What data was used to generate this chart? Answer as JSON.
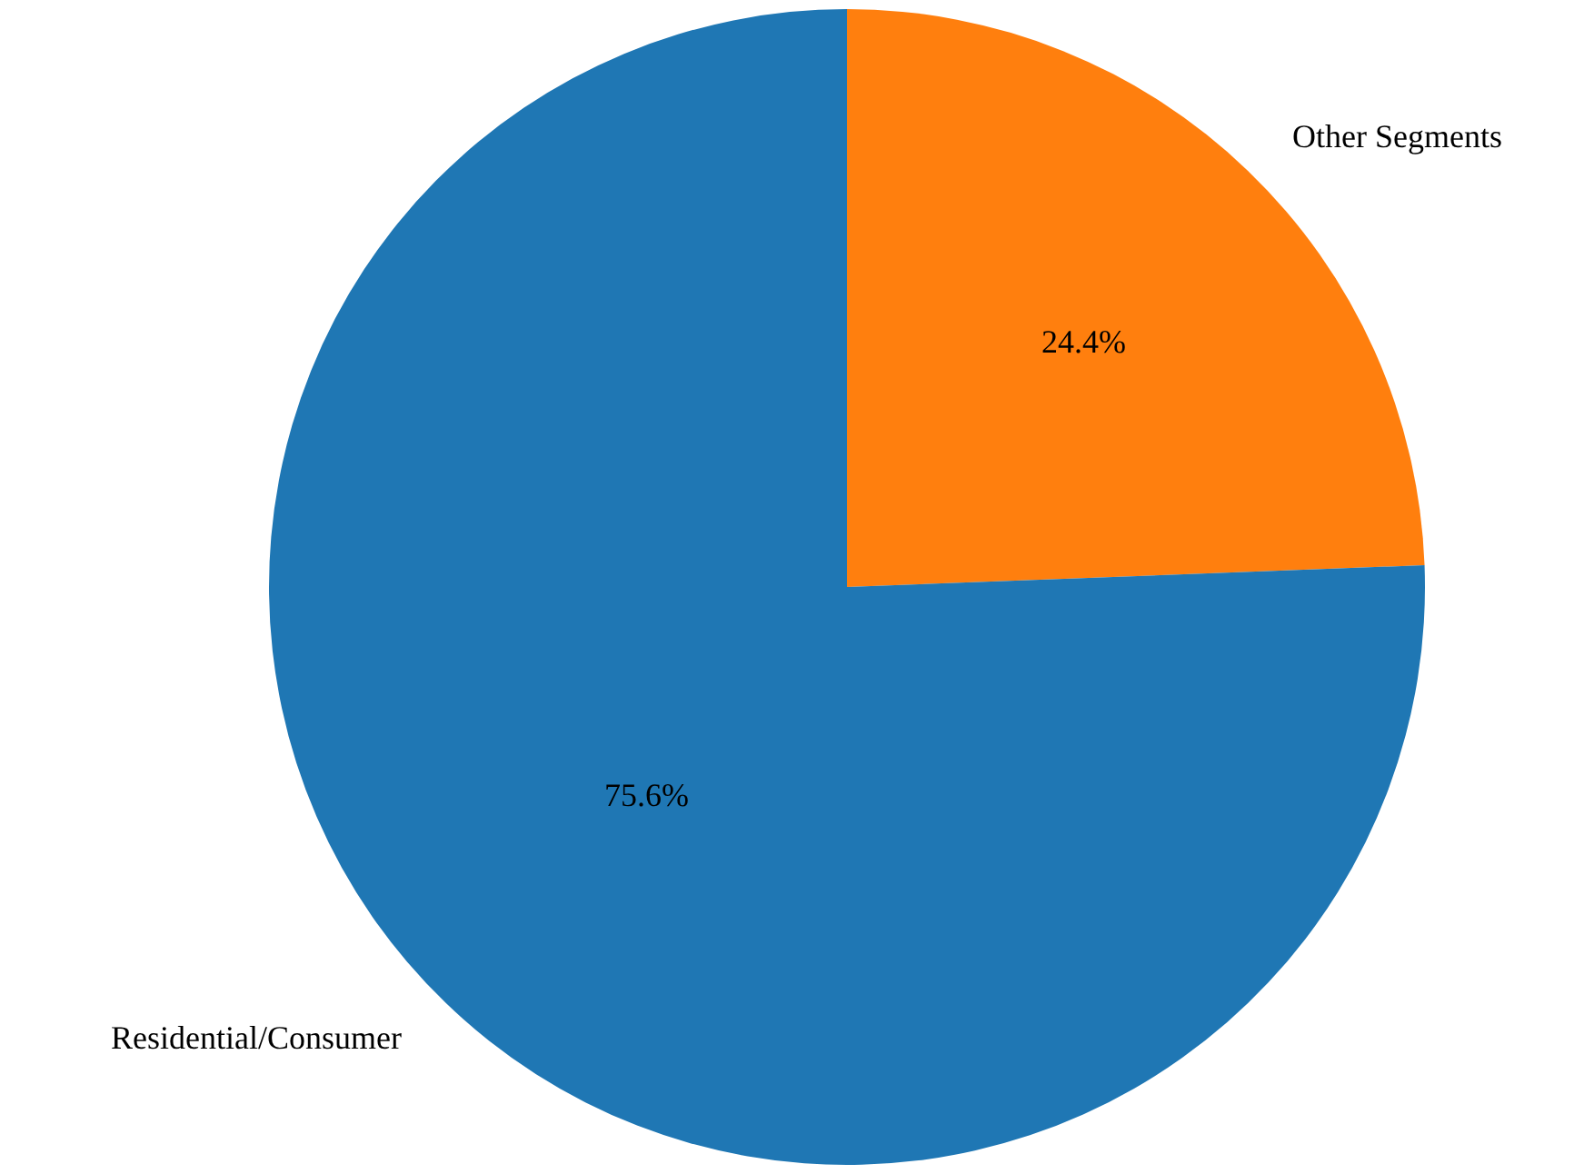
{
  "chart_data": {
    "type": "pie",
    "categories": [
      "Other Segments",
      "Residential/Consumer"
    ],
    "values": [
      24.4,
      75.6
    ],
    "colors": [
      "#ff7f0e",
      "#1f77b4"
    ],
    "value_labels": [
      "24.4%",
      "75.6%"
    ]
  }
}
